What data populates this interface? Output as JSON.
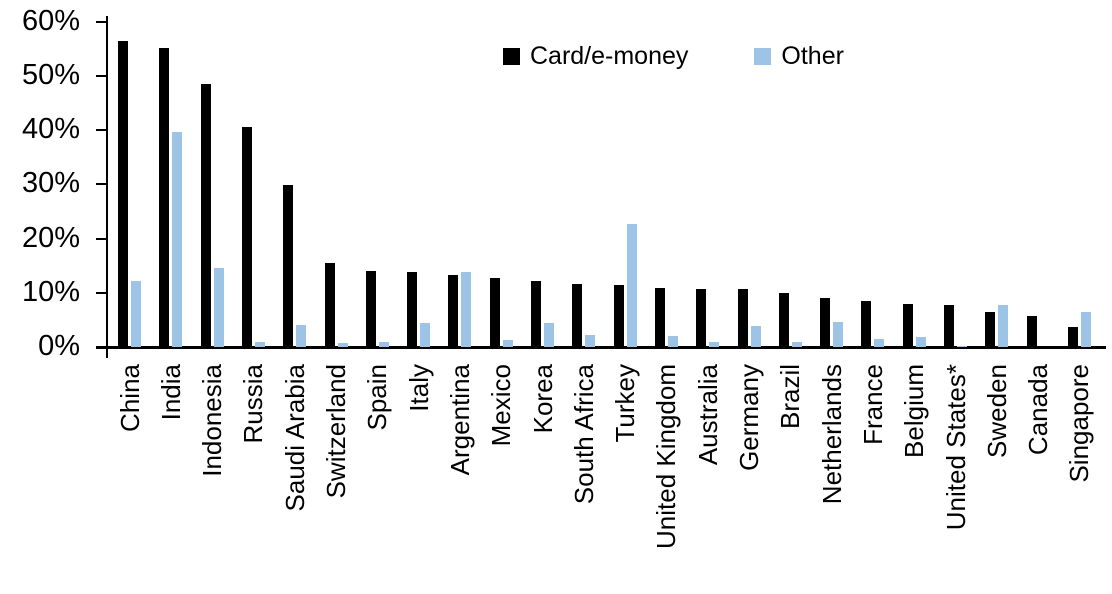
{
  "chart_data": {
    "type": "bar",
    "title": "",
    "categories": [
      "China",
      "India",
      "Indonesia",
      "Russia",
      "Saudi Arabia",
      "Switzerland",
      "Spain",
      "Italy",
      "Argentina",
      "Mexico",
      "Korea",
      "South Africa",
      "Turkey",
      "United Kingdom",
      "Australia",
      "Germany",
      "Brazil",
      "Netherlands",
      "France",
      "Belgium",
      "United States*",
      "Sweden",
      "Canada",
      "Singapore"
    ],
    "series": [
      {
        "name": "Card/e-money",
        "color": "#000000",
        "values": [
          56.4,
          55.1,
          48.4,
          40.6,
          29.8,
          15.4,
          14.1,
          13.9,
          13.2,
          12.8,
          12.1,
          11.6,
          11.5,
          10.9,
          10.7,
          10.6,
          9.9,
          9.1,
          8.5,
          8.0,
          7.7,
          6.4,
          5.8,
          3.7
        ]
      },
      {
        "name": "Other",
        "color": "#9DC3E6",
        "values": [
          12.2,
          39.7,
          14.5,
          0.9,
          4.0,
          0.7,
          0.9,
          4.4,
          13.8,
          1.2,
          4.4,
          2.3,
          22.6,
          2.1,
          0.9,
          3.9,
          1.0,
          4.6,
          1.4,
          1.9,
          0.2,
          7.8,
          0,
          6.4
        ]
      }
    ],
    "ylabel": "",
    "xlabel": "",
    "ylim": [
      0,
      60
    ],
    "yticks": [
      "0%",
      "10%",
      "20%",
      "30%",
      "40%",
      "50%",
      "60%"
    ],
    "grid": false,
    "legend_position": "top-center",
    "axis_color": "#000000"
  }
}
